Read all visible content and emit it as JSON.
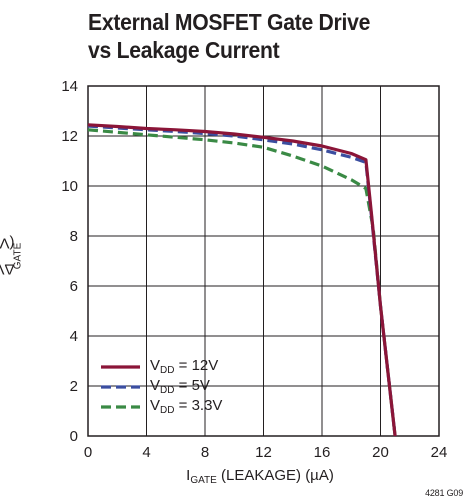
{
  "chart_data": {
    "type": "line",
    "title": [
      "External MOSFET Gate Drive",
      "vs Leakage Current"
    ],
    "xlabel": {
      "main": "I",
      "sub": "GATE",
      "rest": " (LEAKAGE) (µA)"
    },
    "ylabel": {
      "main": "ΔV",
      "sub": "GATE",
      "rest": " (V)"
    },
    "xlim": [
      0,
      24
    ],
    "ylim": [
      0,
      14
    ],
    "xticks": [
      0,
      4,
      8,
      12,
      16,
      20,
      24
    ],
    "yticks": [
      0,
      2,
      4,
      6,
      8,
      10,
      12,
      14
    ],
    "grid": true,
    "legend_position": "bottom-left",
    "series": [
      {
        "name": {
          "main": "V",
          "sub": "DD",
          "rest": " = 12V"
        },
        "color": "#8b1538",
        "dash": "solid",
        "x": [
          0,
          2,
          4,
          6,
          8,
          10,
          12,
          14,
          16,
          18,
          19,
          19.4,
          20,
          20.5,
          21
        ],
        "y": [
          12.45,
          12.38,
          12.3,
          12.25,
          12.18,
          12.08,
          11.95,
          11.8,
          11.6,
          11.3,
          11.05,
          8.8,
          5.2,
          2.6,
          0
        ]
      },
      {
        "name": {
          "main": "V",
          "sub": "DD",
          "rest": " = 5V"
        },
        "color": "#3b4ea0",
        "dash": "dashed",
        "x": [
          0,
          2,
          4,
          6,
          8,
          10,
          12,
          14,
          16,
          18,
          19,
          19.4,
          20,
          20.5,
          21
        ],
        "y": [
          12.4,
          12.32,
          12.25,
          12.18,
          12.1,
          12.0,
          11.85,
          11.68,
          11.45,
          11.15,
          10.95,
          8.7,
          5.2,
          2.6,
          0
        ]
      },
      {
        "name": {
          "main": "V",
          "sub": "DD",
          "rest": " = 3.3V"
        },
        "color": "#3a8a45",
        "dash": "dashed",
        "x": [
          0,
          2,
          4,
          6,
          8,
          10,
          12,
          14,
          16,
          18,
          19,
          19.5,
          20,
          20.5,
          21
        ],
        "y": [
          12.25,
          12.15,
          12.05,
          11.95,
          11.85,
          11.72,
          11.55,
          11.2,
          10.8,
          10.25,
          9.9,
          8.3,
          5.2,
          2.6,
          0
        ]
      }
    ],
    "figure_id": "4281 G09"
  }
}
